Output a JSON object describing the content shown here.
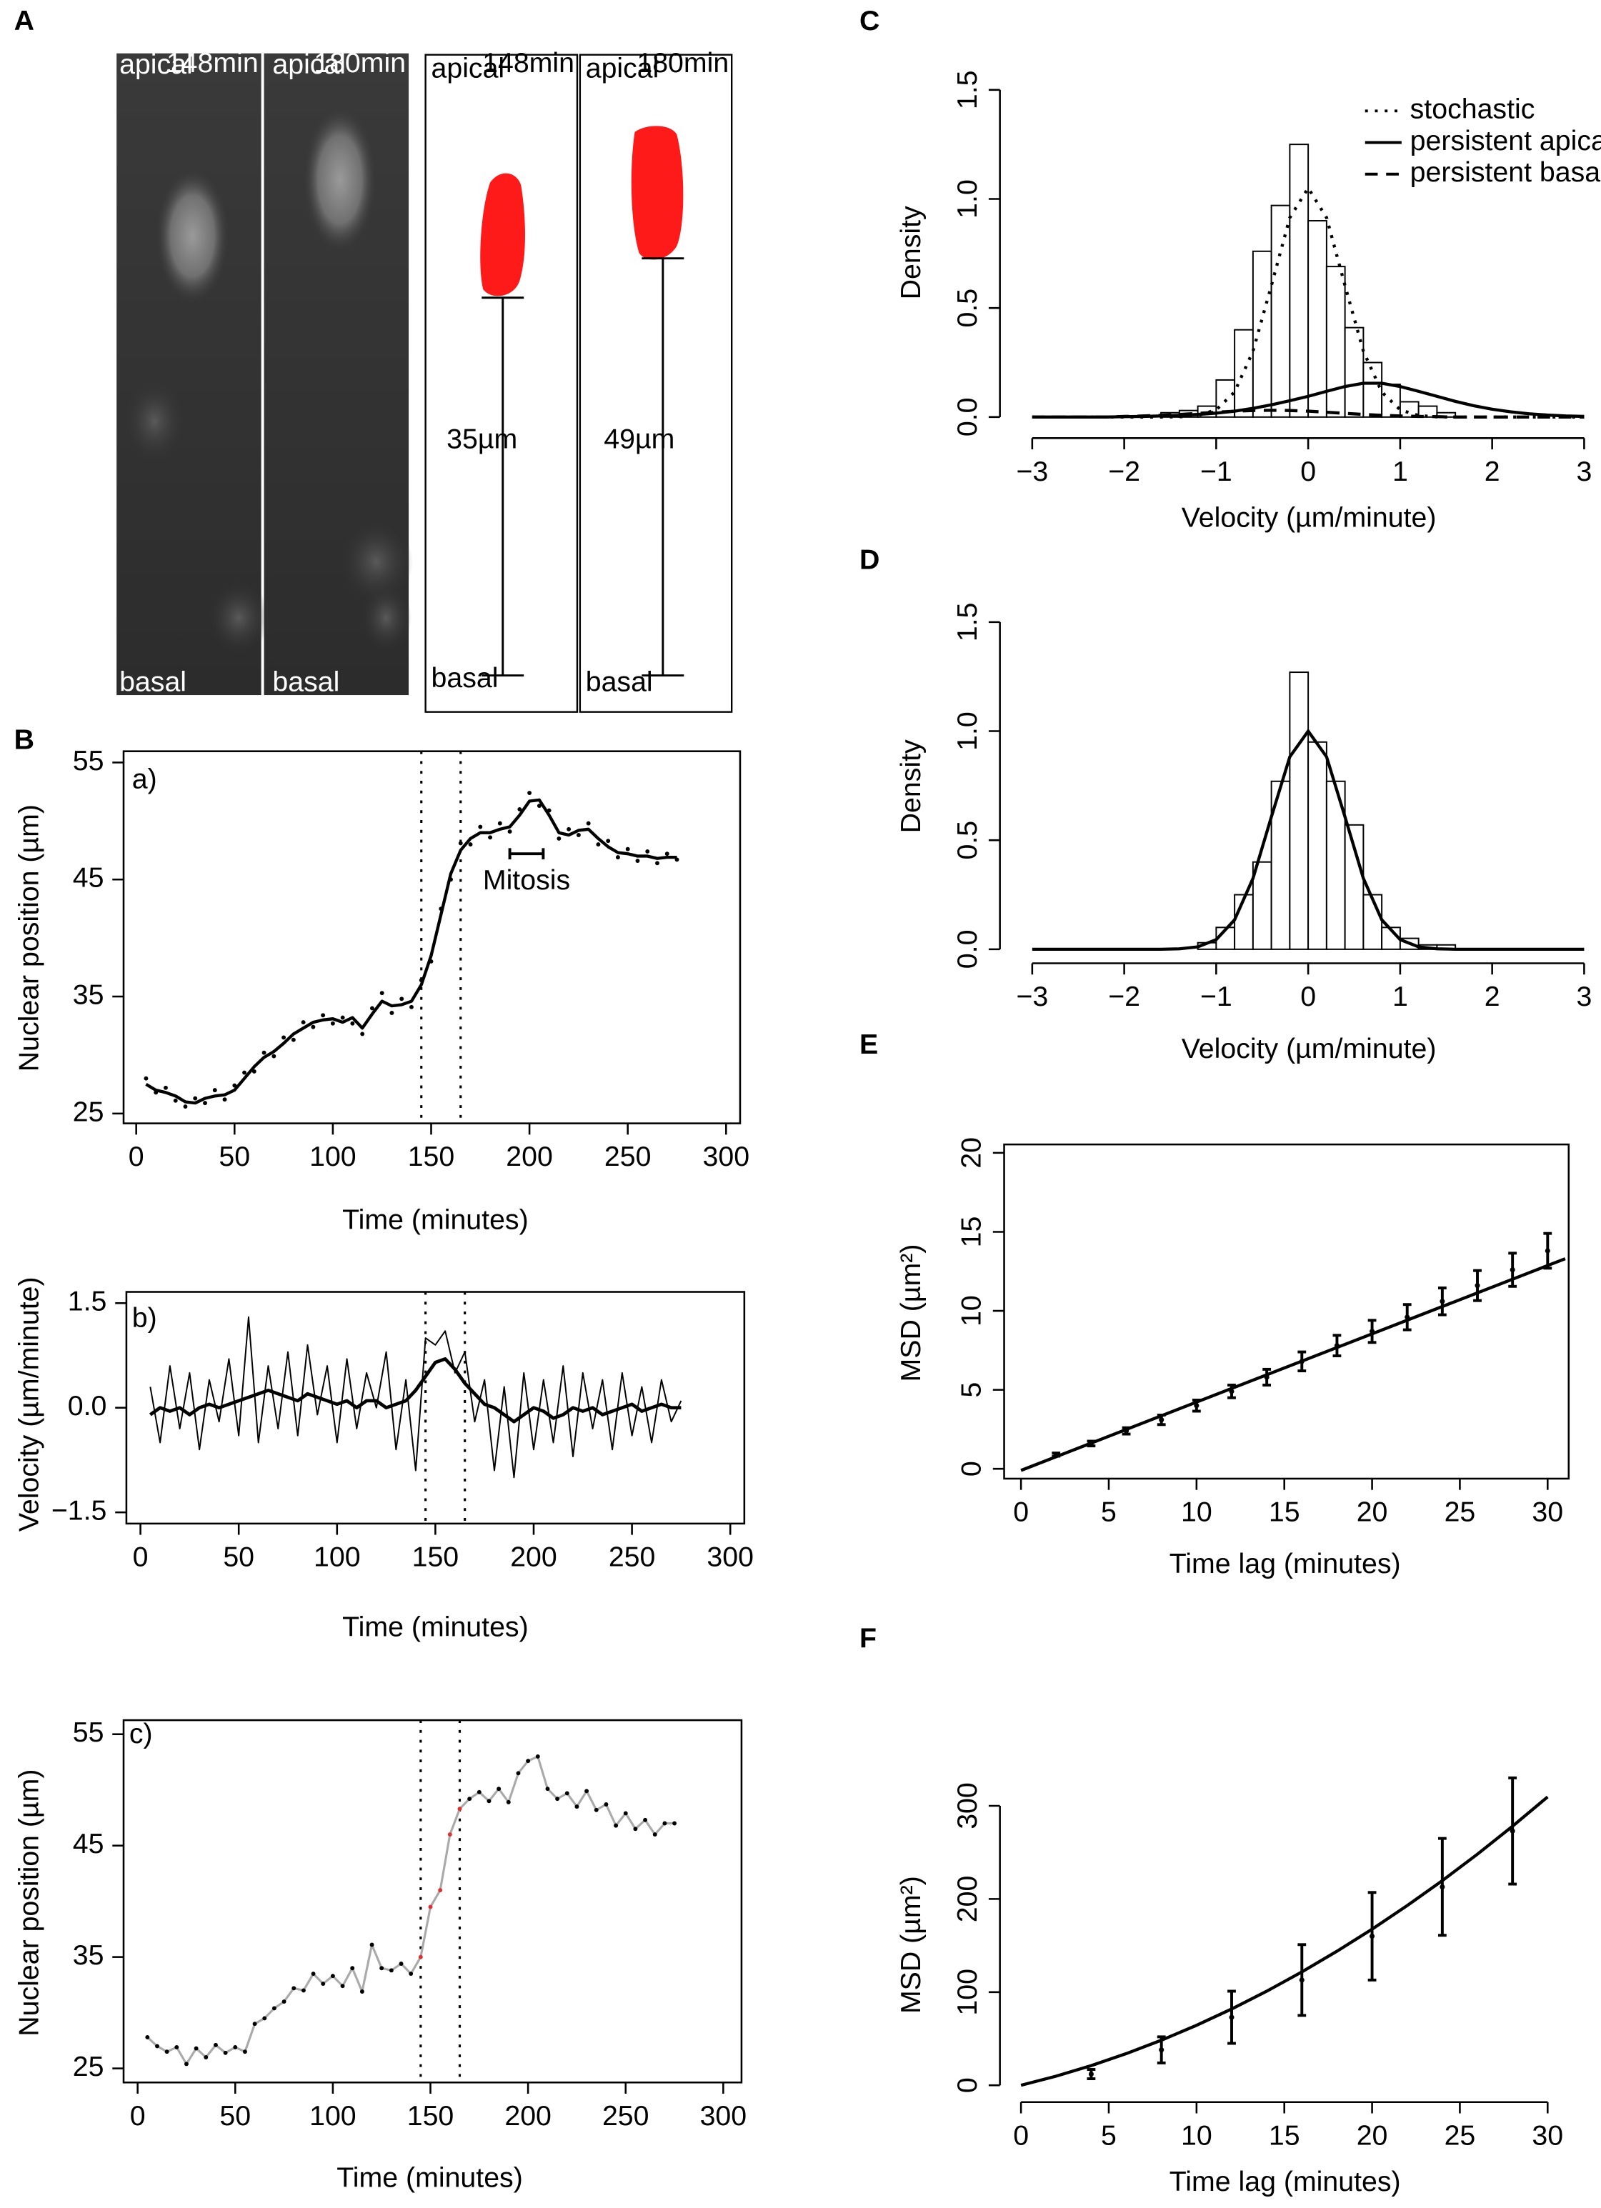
{
  "panel_a": {
    "letter": "A",
    "images": [
      {
        "top": "apical",
        "time": "148min",
        "bottom": "basal"
      },
      {
        "top": "apical",
        "time": "180min",
        "bottom": "basal"
      }
    ],
    "drawings": [
      {
        "top": "apical",
        "time": "148min",
        "bottom": "basal",
        "length": "35µm"
      },
      {
        "top": "apical",
        "time": "180min",
        "bottom": "basal",
        "length": "49µm"
      }
    ]
  },
  "chart_data": [
    {
      "type": "line",
      "panel": "B",
      "panel_label": "a)",
      "xlabel": "Time (minutes)",
      "ylabel": "Nuclear position (µm)",
      "xlim": [
        0,
        300
      ],
      "xticks": [
        0,
        50,
        100,
        150,
        200,
        250,
        300
      ],
      "ylim": [
        25,
        55
      ],
      "yticks": [
        25,
        35,
        45,
        55
      ],
      "vlines": [
        145,
        165
      ],
      "mitosis": {
        "label": "Mitosis",
        "start": 190,
        "end": 207,
        "y": 47.2
      },
      "x": [
        5,
        10,
        15,
        20,
        25,
        30,
        35,
        40,
        45,
        50,
        55,
        60,
        65,
        70,
        75,
        80,
        85,
        90,
        95,
        100,
        105,
        110,
        115,
        120,
        125,
        130,
        135,
        140,
        145,
        150,
        155,
        160,
        165,
        170,
        175,
        180,
        185,
        190,
        195,
        200,
        205,
        210,
        215,
        220,
        225,
        230,
        235,
        240,
        245,
        250,
        255,
        260,
        265,
        270,
        275
      ],
      "series": [
        {
          "style": "points",
          "color": "#000000",
          "values": [
            28.0,
            26.8,
            27.2,
            26.1,
            25.6,
            26.3,
            25.9,
            27.0,
            26.2,
            27.4,
            28.5,
            28.6,
            30.2,
            29.9,
            31.5,
            31.3,
            32.8,
            32.4,
            33.4,
            32.7,
            33.2,
            32.7,
            31.8,
            34.0,
            35.3,
            33.6,
            34.8,
            34.1,
            36.4,
            38.0,
            42.5,
            45.0,
            48.1,
            48.0,
            49.5,
            48.6,
            49.8,
            49.1,
            51.0,
            52.4,
            51.3,
            50.9,
            48.5,
            49.3,
            48.8,
            49.8,
            48.0,
            48.3,
            46.9,
            47.6,
            46.6,
            47.4,
            46.4,
            47.2,
            46.7
          ]
        },
        {
          "style": "line",
          "width": 2.2,
          "color": "#000000",
          "values": [
            27.5,
            27,
            26.8,
            26.5,
            26,
            25.9,
            26.3,
            26.5,
            26.6,
            27,
            28,
            29,
            29.8,
            30.3,
            31,
            31.8,
            32.3,
            32.8,
            33,
            33.1,
            32.8,
            33.2,
            32.3,
            33.5,
            34.6,
            34.2,
            34.3,
            34.6,
            36,
            38.5,
            42,
            45.5,
            47.5,
            48.5,
            49,
            49,
            49.3,
            49.5,
            50.5,
            51.7,
            51.8,
            50.5,
            49,
            48.8,
            49.2,
            49.3,
            48.5,
            47.8,
            47.3,
            47.2,
            47,
            47,
            46.8,
            46.9,
            46.9
          ]
        }
      ]
    },
    {
      "type": "line",
      "panel_label": "b)",
      "xlabel": "Time (minutes)",
      "ylabel": "Velocity (µm/minute)",
      "xlim": [
        0,
        300
      ],
      "xticks": [
        0,
        50,
        100,
        150,
        200,
        250,
        300
      ],
      "ylim": [
        -1.5,
        1.5
      ],
      "yticks": [
        {
          "value": -1.5,
          "label": "−1.5"
        },
        {
          "value": 0,
          "label": "0.0"
        },
        1.5
      ],
      "vlines": [
        145,
        165
      ],
      "x": [
        5,
        10,
        15,
        20,
        25,
        30,
        35,
        40,
        45,
        50,
        55,
        60,
        65,
        70,
        75,
        80,
        85,
        90,
        95,
        100,
        105,
        110,
        115,
        120,
        125,
        130,
        135,
        140,
        145,
        150,
        155,
        160,
        165,
        170,
        175,
        180,
        185,
        190,
        195,
        200,
        205,
        210,
        215,
        220,
        225,
        230,
        235,
        240,
        245,
        250,
        255,
        260,
        265,
        270,
        275
      ],
      "series": [
        {
          "style": "line",
          "width": 1,
          "color": "#000000",
          "values": [
            0.3,
            -0.5,
            0.6,
            -0.3,
            0.5,
            -0.6,
            0.4,
            -0.2,
            0.7,
            -0.4,
            1.3,
            -0.5,
            0.6,
            -0.3,
            0.8,
            -0.4,
            0.9,
            -0.1,
            0.6,
            -0.5,
            0.7,
            -0.3,
            0.5,
            0.0,
            0.8,
            -0.6,
            0.4,
            -0.9,
            1.0,
            0.9,
            1.1,
            0.5,
            0.8,
            -0.2,
            0.4,
            -0.9,
            0.3,
            -1.0,
            0.5,
            -0.6,
            0.4,
            -0.5,
            0.6,
            -0.7,
            0.5,
            -0.3,
            0.4,
            -0.6,
            0.5,
            -0.4,
            0.3,
            -0.5,
            0.4,
            -0.2,
            0.1
          ]
        },
        {
          "style": "line",
          "width": 2.4,
          "color": "#000000",
          "values": [
            -0.1,
            0,
            -0.05,
            0,
            -0.1,
            0,
            0.05,
            0,
            0.05,
            0.1,
            0.15,
            0.2,
            0.25,
            0.2,
            0.15,
            0.1,
            0.2,
            0.15,
            0.1,
            0.05,
            0.1,
            0,
            0.1,
            0.1,
            0,
            0.05,
            0.1,
            0.25,
            0.45,
            0.65,
            0.7,
            0.55,
            0.35,
            0.2,
            0.05,
            0,
            -0.1,
            -0.2,
            -0.1,
            0,
            -0.05,
            -0.15,
            -0.1,
            0,
            -0.05,
            0,
            -0.1,
            -0.05,
            0,
            0.05,
            -0.05,
            0,
            0.05,
            0,
            0
          ]
        }
      ]
    },
    {
      "type": "line",
      "panel_label": "c)",
      "xlabel": "Time (minutes)",
      "ylabel": "Nuclear position (µm)",
      "xlim": [
        0,
        300
      ],
      "xticks": [
        0,
        50,
        100,
        150,
        200,
        250,
        300
      ],
      "ylim": [
        25,
        55
      ],
      "yticks": [
        25,
        35,
        45,
        55
      ],
      "vlines": [
        145,
        165
      ],
      "highlight_color": "#e03030",
      "x": [
        5,
        10,
        15,
        20,
        25,
        30,
        35,
        40,
        45,
        50,
        55,
        60,
        65,
        70,
        75,
        80,
        85,
        90,
        95,
        100,
        105,
        110,
        115,
        120,
        125,
        130,
        135,
        140,
        145,
        150,
        155,
        160,
        165,
        170,
        175,
        180,
        185,
        190,
        195,
        200,
        205,
        210,
        215,
        220,
        225,
        230,
        235,
        240,
        245,
        250,
        255,
        260,
        265,
        270,
        275
      ],
      "series": [
        {
          "style": "line-points",
          "width": 1.6,
          "color": "#aaaaaa",
          "point_color": "#000000",
          "values": [
            27.8,
            27.0,
            26.5,
            26.9,
            25.4,
            26.8,
            26.0,
            27.1,
            26.4,
            26.9,
            26.5,
            29.0,
            29.5,
            30.4,
            31.0,
            32.2,
            32.0,
            33.5,
            32.6,
            33.3,
            32.4,
            34.0,
            31.9,
            36.1,
            34.0,
            33.8,
            34.4,
            33.5,
            35.0,
            39.5,
            41.0,
            46.0,
            48.3,
            49.2,
            49.8,
            49.0,
            50.1,
            48.9,
            51.5,
            52.6,
            53.0,
            50.1,
            49.2,
            49.7,
            48.5,
            49.9,
            48.2,
            48.7,
            46.8,
            47.9,
            46.5,
            47.3,
            46.0,
            47.0,
            47.0
          ]
        }
      ]
    },
    {
      "type": "histogram",
      "panel": "C",
      "xlabel": "Velocity (µm/minute)",
      "ylabel": "Density",
      "xlim": [
        -3,
        3
      ],
      "xticks": [
        {
          "value": -3,
          "label": "−3"
        },
        {
          "value": -2,
          "label": "−2"
        },
        {
          "value": -1,
          "label": "−1"
        },
        0,
        1,
        2,
        3
      ],
      "ylim": [
        0,
        1.5
      ],
      "yticks": [
        {
          "value": 0,
          "label": "0.0"
        },
        0.5,
        {
          "value": 1,
          "label": "1.0"
        },
        1.5
      ],
      "bins": [
        -1.6,
        -1.4,
        -1.2,
        -1.0,
        -0.8,
        -0.6,
        -0.4,
        -0.2,
        0,
        0.2,
        0.4,
        0.6,
        0.8,
        1.0,
        1.2,
        1.4,
        1.6
      ],
      "counts": [
        0.02,
        0.03,
        0.05,
        0.17,
        0.4,
        0.76,
        0.97,
        1.25,
        0.9,
        0.69,
        0.41,
        0.25,
        0.15,
        0.07,
        0.05,
        0.02
      ],
      "legend": "top-right",
      "curve_x": [
        -3,
        -2.8,
        -2.6,
        -2.4,
        -2.2,
        -2,
        -1.8,
        -1.6,
        -1.4,
        -1.2,
        -1,
        -0.8,
        -0.6,
        -0.4,
        -0.2,
        0,
        0.2,
        0.4,
        0.6,
        0.8,
        1,
        1.2,
        1.4,
        1.6,
        1.8,
        2,
        2.2,
        2.4,
        2.6,
        2.8,
        3
      ],
      "series": [
        {
          "name": "stochastic",
          "dash": "dotted",
          "color": "#000000",
          "values": [
            0,
            0,
            0,
            0,
            0,
            0,
            0,
            0,
            0.001,
            0.007,
            0.033,
            0.115,
            0.302,
            0.603,
            0.914,
            1.05,
            0.914,
            0.603,
            0.302,
            0.115,
            0.033,
            0.007,
            0.001,
            0,
            0,
            0,
            0,
            0,
            0,
            0,
            0
          ]
        },
        {
          "name": "persistent apical",
          "dash": "solid",
          "color": "#000000",
          "values": [
            0,
            0,
            0,
            0,
            0,
            0.002,
            0.003,
            0.005,
            0.008,
            0.012,
            0.018,
            0.027,
            0.04,
            0.056,
            0.075,
            0.095,
            0.118,
            0.14,
            0.155,
            0.155,
            0.14,
            0.118,
            0.095,
            0.072,
            0.052,
            0.036,
            0.024,
            0.015,
            0.009,
            0.005,
            0.003
          ]
        },
        {
          "name": "persistent basal",
          "dash": "dashed",
          "color": "#000000",
          "values": [
            0,
            0,
            0,
            0,
            0,
            0.003,
            0.005,
            0.008,
            0.012,
            0.017,
            0.022,
            0.027,
            0.03,
            0.031,
            0.03,
            0.027,
            0.022,
            0.017,
            0.012,
            0.008,
            0.005,
            0.003,
            0.002,
            0,
            0,
            0,
            0,
            0,
            0,
            0,
            0
          ]
        }
      ]
    },
    {
      "type": "histogram",
      "panel": "D",
      "xlabel": "Velocity (µm/minute)",
      "ylabel": "Density",
      "xlim": [
        -3,
        3
      ],
      "xticks": [
        {
          "value": -3,
          "label": "−3"
        },
        {
          "value": -2,
          "label": "−2"
        },
        {
          "value": -1,
          "label": "−1"
        },
        0,
        1,
        2,
        3
      ],
      "ylim": [
        0,
        1.5
      ],
      "yticks": [
        {
          "value": 0,
          "label": "0.0"
        },
        0.5,
        {
          "value": 1,
          "label": "1.0"
        },
        1.5
      ],
      "bins": [
        -1.2,
        -1.0,
        -0.8,
        -0.6,
        -0.4,
        -0.2,
        0,
        0.2,
        0.4,
        0.6,
        0.8,
        1.0,
        1.2,
        1.4,
        1.6
      ],
      "counts": [
        0.03,
        0.1,
        0.25,
        0.4,
        0.77,
        1.27,
        0.95,
        0.77,
        0.57,
        0.25,
        0.1,
        0.05,
        0.02,
        0.02
      ],
      "curve_x": [
        -3,
        -2.8,
        -2.6,
        -2.4,
        -2.2,
        -2,
        -1.8,
        -1.6,
        -1.4,
        -1.2,
        -1,
        -0.8,
        -0.6,
        -0.4,
        -0.2,
        0,
        0.2,
        0.4,
        0.6,
        0.8,
        1,
        1.2,
        1.4,
        1.6,
        1.8,
        2,
        2.2,
        2.4,
        2.6,
        2.8,
        3
      ],
      "series": [
        {
          "dash": "solid",
          "color": "#000000",
          "values": [
            0,
            0,
            0,
            0,
            0,
            0,
            0,
            0,
            0.002,
            0.011,
            0.044,
            0.135,
            0.325,
            0.607,
            0.882,
            1,
            0.882,
            0.607,
            0.325,
            0.135,
            0.044,
            0.011,
            0.002,
            0,
            0,
            0,
            0,
            0,
            0,
            0,
            0
          ]
        }
      ]
    },
    {
      "type": "errorbar",
      "panel": "E",
      "xlabel": "Time lag (minutes)",
      "ylabel": "MSD (µm²)",
      "xlim": [
        0,
        30
      ],
      "xticks": [
        0,
        5,
        10,
        15,
        20,
        25,
        30
      ],
      "ylim": [
        0,
        20
      ],
      "yticks": [
        0,
        5,
        10,
        15,
        20
      ],
      "x": [
        2,
        4,
        6,
        8,
        10,
        12,
        14,
        16,
        18,
        20,
        22,
        24,
        26,
        28,
        30
      ],
      "values": [
        0.9,
        1.6,
        2.4,
        3.1,
        4.0,
        4.9,
        5.8,
        6.8,
        7.8,
        8.7,
        9.6,
        10.6,
        11.6,
        12.6,
        13.8
      ],
      "errors": [
        0.1,
        0.15,
        0.2,
        0.3,
        0.35,
        0.4,
        0.5,
        0.6,
        0.65,
        0.7,
        0.8,
        0.85,
        0.95,
        1.05,
        1.1
      ],
      "fit": {
        "x": [
          0,
          31
        ],
        "values": [
          -0.1,
          13.3
        ]
      }
    },
    {
      "type": "errorbar",
      "panel": "F",
      "xlabel": "Time lag (minutes)",
      "ylabel": "MSD (µm²)",
      "xlim": [
        0,
        30
      ],
      "xticks": [
        0,
        5,
        10,
        15,
        20,
        25,
        30
      ],
      "ylim": [
        0,
        300
      ],
      "yticks": [
        0,
        100,
        200,
        300
      ],
      "x": [
        4,
        8,
        12,
        16,
        20,
        24,
        28
      ],
      "values": [
        12,
        38,
        73,
        113,
        160,
        213,
        273
      ],
      "errors": [
        5,
        14,
        28,
        38,
        47,
        52,
        57
      ],
      "fit": {
        "x": [
          0,
          2,
          4,
          6,
          8,
          10,
          12,
          14,
          16,
          18,
          20,
          22,
          24,
          26,
          28,
          30
        ],
        "values": [
          0,
          9.8,
          21.1,
          34.0,
          48.4,
          64.4,
          81.9,
          101.0,
          121.7,
          143.9,
          167.6,
          192.9,
          219.7,
          248.1,
          278.1,
          309.6
        ]
      }
    }
  ]
}
